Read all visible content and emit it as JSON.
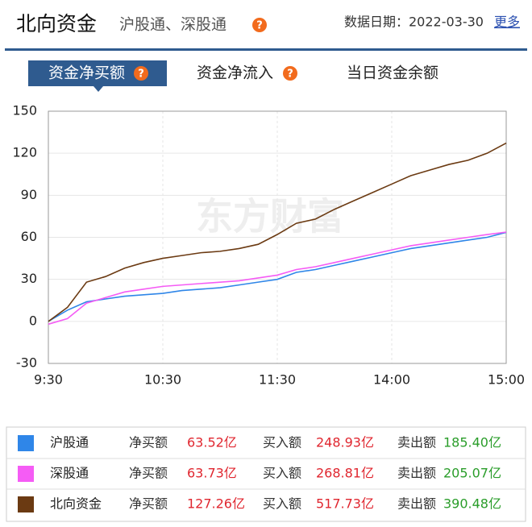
{
  "header": {
    "title": "北向资金",
    "subtitle": "沪股通、深股通",
    "date_label": "数据日期：",
    "date": "2022-03-30",
    "more": "更多"
  },
  "tabs": [
    "资金净买额",
    "资金净流入",
    "当日资金余额"
  ],
  "watermark": "东方财富",
  "chart_data": {
    "type": "line",
    "x": [
      0,
      10,
      20,
      30,
      40,
      50,
      60,
      70,
      80,
      90,
      100,
      110,
      120,
      130,
      140,
      150,
      160,
      170,
      180,
      190,
      200,
      210,
      220,
      230,
      240
    ],
    "xlim": [
      0,
      240
    ],
    "xticks": [
      {
        "value": 0,
        "label": "9:30"
      },
      {
        "value": 60,
        "label": "10:30"
      },
      {
        "value": 120,
        "label": "11:30"
      },
      {
        "value": 180,
        "label": "14:00"
      },
      {
        "value": 240,
        "label": "15:00"
      }
    ],
    "ylim": [
      -30,
      150
    ],
    "yticks": [
      -30,
      0,
      30,
      60,
      90,
      120,
      150
    ],
    "grid": true,
    "series": [
      {
        "name": "沪股通",
        "color": "#2f86e8",
        "values": [
          0,
          8,
          14,
          16,
          18,
          19,
          20,
          22,
          23,
          24,
          26,
          28,
          30,
          35,
          37,
          40,
          43,
          46,
          49,
          52,
          54,
          56,
          58,
          60,
          63.52
        ]
      },
      {
        "name": "深股通",
        "color": "#f55cf5",
        "values": [
          -2,
          2,
          13,
          17,
          21,
          23,
          25,
          26,
          27,
          28,
          29,
          31,
          33,
          37,
          39,
          42,
          45,
          48,
          51,
          54,
          56,
          58,
          60,
          62,
          63.73
        ]
      },
      {
        "name": "北向资金",
        "color": "#6b3a12",
        "values": [
          0,
          10,
          28,
          32,
          38,
          42,
          45,
          47,
          49,
          50,
          52,
          55,
          62,
          70,
          73,
          80,
          86,
          92,
          98,
          104,
          108,
          112,
          115,
          120,
          127.26
        ]
      }
    ]
  },
  "table": {
    "rows": [
      [
        "净买额",
        "63.52亿",
        "买入额",
        "248.93亿",
        "卖出额",
        "185.40亿"
      ],
      [
        "净买额",
        "63.73亿",
        "买入额",
        "268.81亿",
        "卖出额",
        "205.07亿"
      ],
      [
        "净买额",
        "127.26亿",
        "买入额",
        "517.73亿",
        "卖出额",
        "390.48亿"
      ]
    ]
  }
}
